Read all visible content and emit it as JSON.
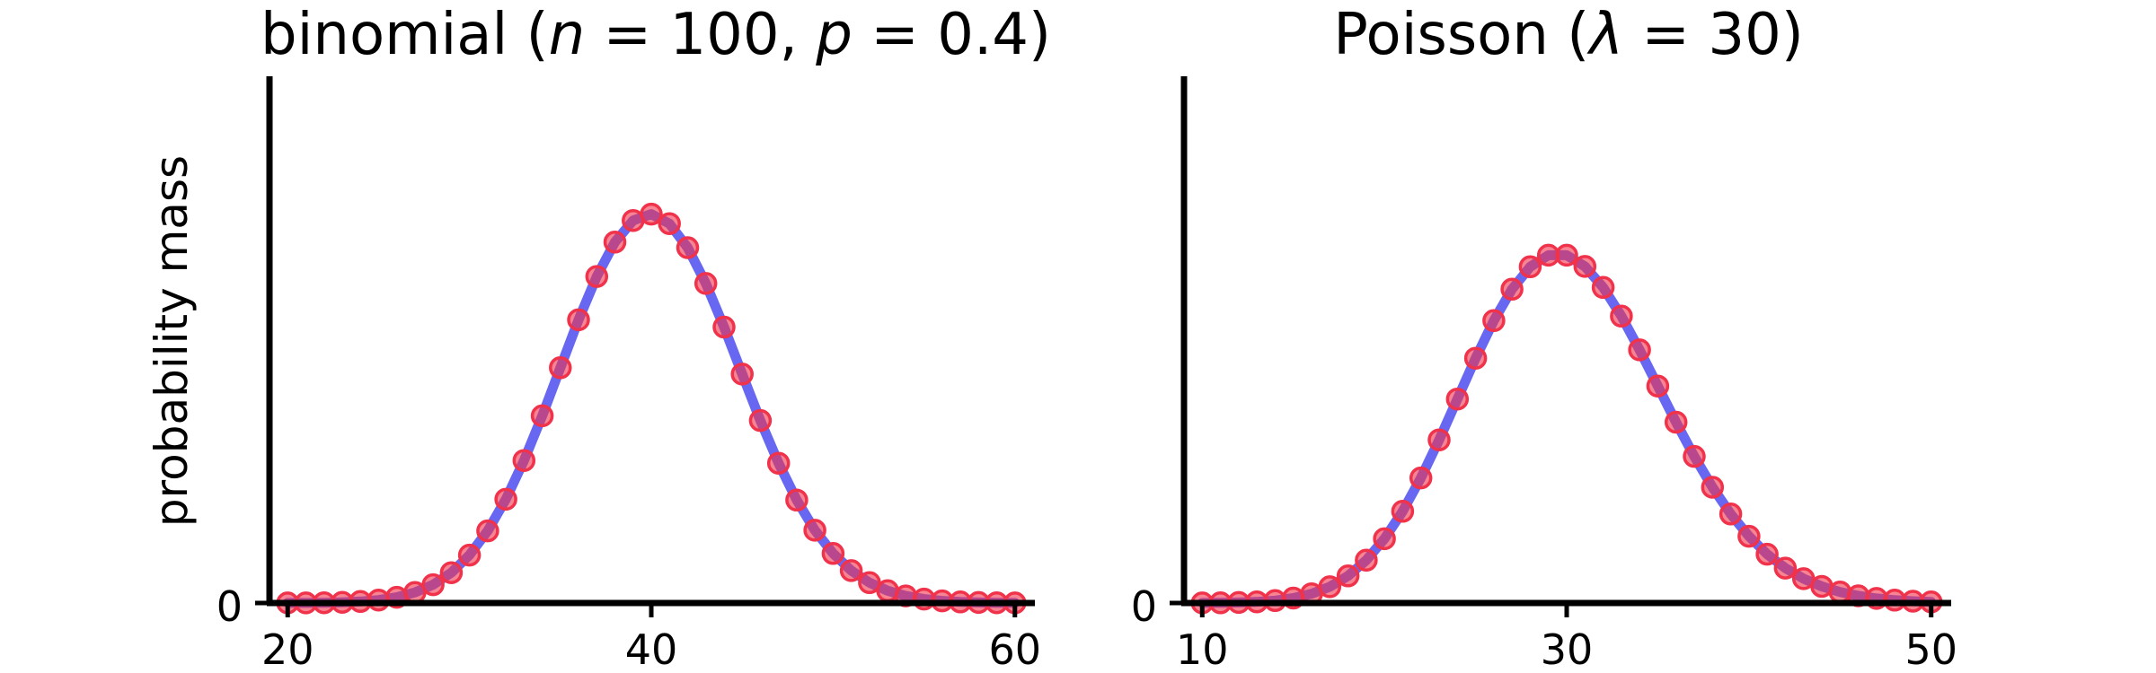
{
  "chart_data": [
    {
      "type": "line",
      "title_prefix": "binomial (",
      "title_n": "n",
      "title_n_eq": " = 100, ",
      "title_p": "p",
      "title_p_eq": " = 0.4)",
      "ylabel": "probability mass",
      "y_tick_label": "0",
      "xlim": [
        19,
        61
      ],
      "ylim": [
        0,
        0.11
      ],
      "x_ticks": [
        20,
        40,
        60
      ],
      "distribution": "binomial",
      "params": {
        "n": 100,
        "p": 0.4
      },
      "pmf_x_range": [
        20,
        60
      ],
      "line_color": "#5a5af0",
      "marker_color": "#f0324b"
    },
    {
      "type": "line",
      "title_prefix": "Poisson (",
      "title_lambda": "λ",
      "title_lambda_eq": " = 30)",
      "ylabel": "",
      "y_tick_label": "0",
      "xlim": [
        9,
        51
      ],
      "ylim": [
        0,
        0.11
      ],
      "x_ticks": [
        10,
        30,
        50
      ],
      "distribution": "poisson",
      "params": {
        "lambda": 30
      },
      "pmf_x_range": [
        10,
        50
      ],
      "line_color": "#5a5af0",
      "marker_color": "#f0324b"
    }
  ]
}
